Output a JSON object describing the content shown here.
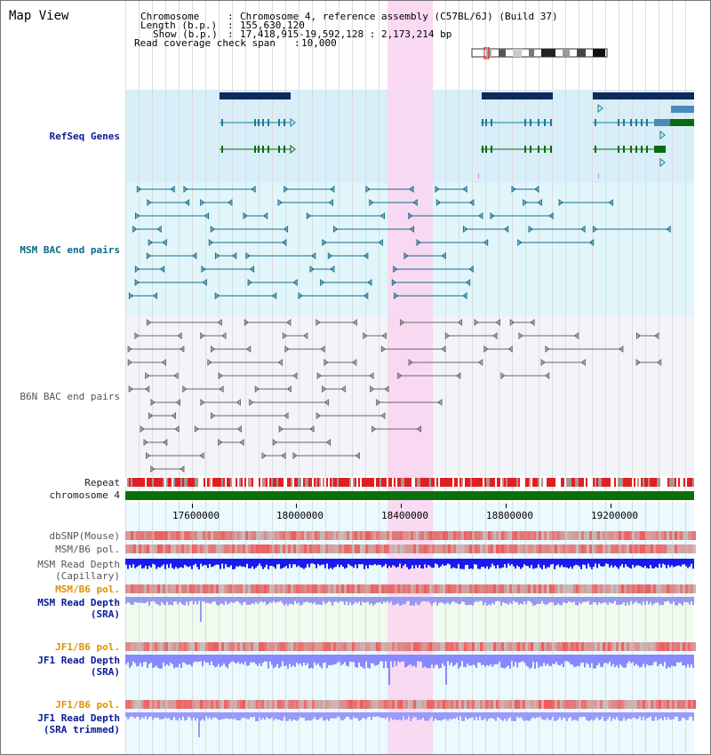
{
  "title": "Map View",
  "header": {
    "chromosome_key": "Chromosome",
    "chromosome_val": "Chromosome 4, reference assembly (C57BL/6J) (Build 37)",
    "length_key": "Length (b.p.)",
    "length_val": "155,630,120",
    "show_key": "Show (b.p.)",
    "show_val": "17,418,915-19,592,128 : 2,173,214 bp",
    "span_key": "Read coverage check span",
    "span_val": "10,000"
  },
  "tracks": {
    "refseq": "RefSeq Genes",
    "msm_bac": "MSM BAC end pairs",
    "b6n_bac": "B6N BAC end pairs",
    "repeat": "Repeat",
    "chromosome": "chromosome 4",
    "dbsnp": "dbSNP(Mouse)",
    "msm_b6_pol_1": "MSM/B6 pol.",
    "msm_read_depth_cap_1": "MSM Read Depth",
    "msm_read_depth_cap_2": "(Capillary)",
    "msm_b6_pol_2": "MSM/B6 pol.",
    "msm_read_depth_sra_1": "MSM Read Depth",
    "msm_read_depth_sra_2": "(SRA)",
    "jf1_b6_pol_1": "JF1/B6 pol.",
    "jf1_read_depth_sra_1": "JF1 Read Depth",
    "jf1_read_depth_sra_2": "(SRA)",
    "jf1_b6_pol_2": "JF1/B6 pol.",
    "jf1_read_depth_trim_1": "JF1 Read Depth",
    "jf1_read_depth_trim_2": "(SRA trimmed)"
  },
  "axis_ticks": [
    "17600000",
    "18000000",
    "18400000",
    "18800000",
    "19200000"
  ],
  "colors": {
    "refseq_bg": "#d8eef8",
    "msm_bg": "#e0f6fa",
    "b6n_bg": "#f3f4f8",
    "highlight": "#f9d6f1",
    "gene_navy": "#0e2a5c",
    "gene_teal": "#1a7a9a",
    "gene_green": "#0a6a10",
    "repeat_red": "#e02020",
    "chrom_green": "#0a700a",
    "depth_blue": "#1a1aee",
    "depth_light": "#8888ff"
  }
}
